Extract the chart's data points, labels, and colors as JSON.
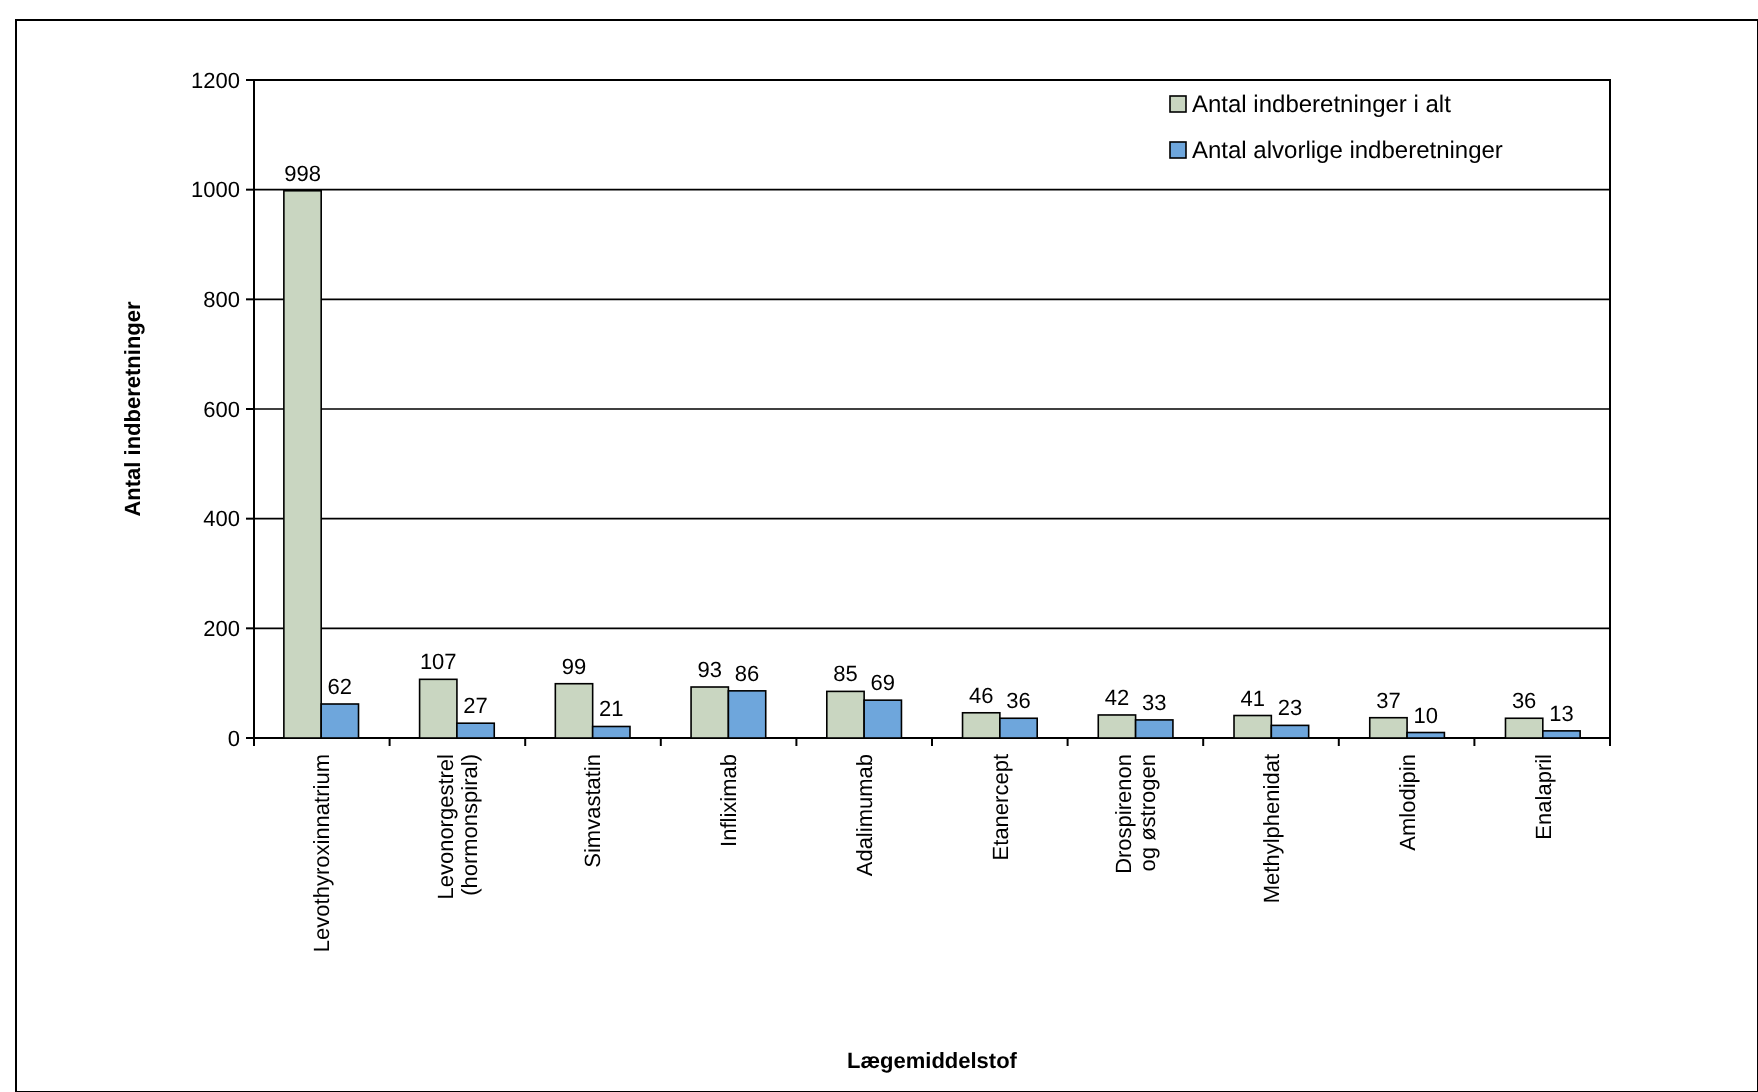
{
  "chart_data": {
    "type": "bar",
    "xlabel": "Lægemiddelstof",
    "ylabel": "Antal indberetninger",
    "categories": [
      "Levothyroxinnatrium",
      "Levonorgestrel (hormonspiral)",
      "Simvastatin",
      "Infliximab",
      "Adalimumab",
      "Etanercept",
      "Drospirenon og østrogen",
      "Methylphenidat",
      "Amlodipin",
      "Enalapril"
    ],
    "series": [
      {
        "name": "Antal indberetninger i alt",
        "color": "#c9d6c1",
        "values": [
          998,
          107,
          99,
          93,
          85,
          46,
          42,
          41,
          37,
          36
        ]
      },
      {
        "name": "Antal alvorlige indberetninger",
        "color": "#6ea6dc",
        "values": [
          62,
          27,
          21,
          86,
          69,
          36,
          33,
          23,
          10,
          13
        ]
      }
    ],
    "ylim": [
      0,
      1200
    ],
    "yticks": [
      0,
      200,
      400,
      600,
      800,
      1000,
      1200
    ],
    "grid": "y",
    "legend": "top right",
    "data_labels": true
  }
}
